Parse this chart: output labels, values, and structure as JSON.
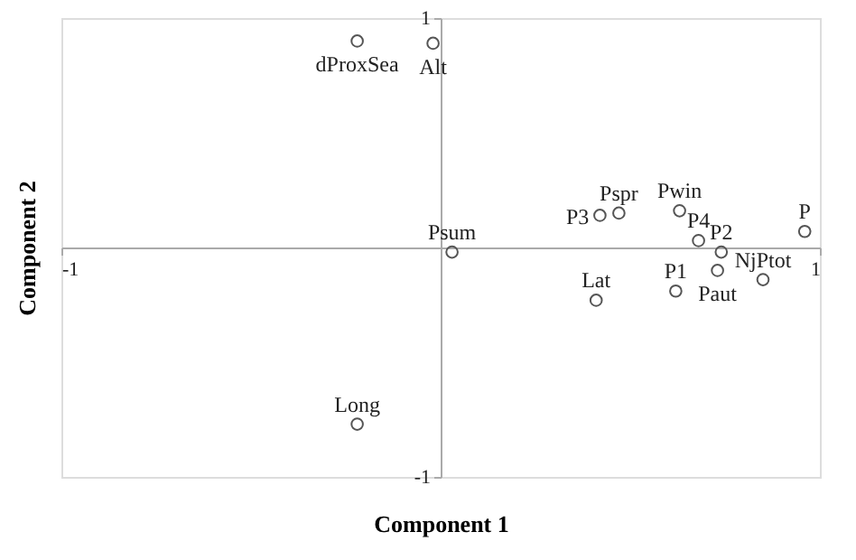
{
  "chart_data": {
    "type": "scatter",
    "xlabel": "Component 1",
    "ylabel": "Component 2",
    "x": [
      -0.22,
      -0.02,
      0.03,
      0.42,
      0.47,
      0.63,
      0.68,
      0.74,
      0.96,
      0.73,
      0.85,
      0.62,
      0.41,
      -0.22
    ],
    "values": [
      0.9,
      0.89,
      -0.02,
      0.14,
      0.15,
      0.16,
      0.03,
      -0.02,
      0.07,
      -0.1,
      -0.14,
      -0.19,
      -0.23,
      -0.77
    ],
    "color": "#555555",
    "marker": "circle",
    "annotations": [
      {
        "text": "dProxSea",
        "x": -0.22,
        "y": 0.9
      },
      {
        "text": "Alt",
        "x": -0.02,
        "y": 0.89
      },
      {
        "text": "Psum",
        "x": 0.03,
        "y": -0.02
      },
      {
        "text": "P3",
        "x": 0.42,
        "y": 0.14
      },
      {
        "text": "Pspr",
        "x": 0.47,
        "y": 0.15
      },
      {
        "text": "Pwin",
        "x": 0.63,
        "y": 0.16
      },
      {
        "text": "P4",
        "x": 0.68,
        "y": 0.03
      },
      {
        "text": "P2",
        "x": 0.74,
        "y": -0.02
      },
      {
        "text": "P",
        "x": 0.96,
        "y": 0.07
      },
      {
        "text": "Paut",
        "x": 0.73,
        "y": -0.1
      },
      {
        "text": "NjPtot",
        "x": 0.85,
        "y": -0.14
      },
      {
        "text": "P1",
        "x": 0.62,
        "y": -0.19
      },
      {
        "text": "Lat",
        "x": 0.41,
        "y": -0.23
      },
      {
        "text": "Long",
        "x": -0.22,
        "y": -0.77
      }
    ],
    "xlim": [
      -1,
      1
    ],
    "ylim": [
      -1,
      1
    ],
    "xticks": [
      -1,
      1
    ],
    "yticks": [
      -1,
      1
    ]
  }
}
